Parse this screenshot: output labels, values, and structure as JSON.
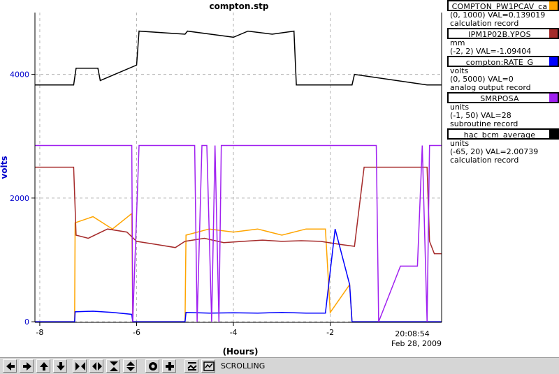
{
  "chart_data": {
    "type": "line",
    "title": "compton.stp",
    "xlabel": "(Hours)",
    "ylabel": "volts",
    "xlim": [
      -8.1,
      0.3
    ],
    "ylim": [
      -10,
      5000
    ],
    "x_ticks": [
      -8,
      -6,
      -4,
      -2
    ],
    "y_ticks": [
      0,
      2000,
      4000
    ],
    "grid": true,
    "legend_position": "right",
    "end_time": "20:08:54",
    "end_date": "Feb 28, 2009",
    "series": [
      {
        "name": "COMPTON_PW1PCAV_ca",
        "color": "#ffa500",
        "x": [
          -8.1,
          -7.28,
          -7.27,
          -6.9,
          -6.5,
          -6.1,
          -6.08,
          -5.0,
          -4.98,
          -4.5,
          -4.0,
          -3.5,
          -3.0,
          -2.5,
          -2.1,
          -2.0,
          -1.6,
          -1.55,
          0.0,
          0.15,
          0.3
        ],
        "y": [
          0,
          0,
          1600,
          1700,
          1500,
          1750,
          0,
          0,
          1400,
          1500,
          1450,
          1500,
          1400,
          1500,
          1500,
          150,
          600,
          0,
          0,
          0,
          0
        ]
      },
      {
        "name": "IPM1P02B.YPOS",
        "color": "#a52a2a",
        "x": [
          -8.1,
          -7.3,
          -7.25,
          -7.0,
          -6.6,
          -6.2,
          -6.0,
          -5.6,
          -5.2,
          -5.0,
          -4.6,
          -4.2,
          -3.8,
          -3.4,
          -3.0,
          -2.6,
          -2.2,
          -1.8,
          -1.5,
          -1.3,
          0.0,
          0.05,
          0.15,
          0.3
        ],
        "y": [
          2500,
          2500,
          1400,
          1350,
          1500,
          1450,
          1300,
          1250,
          1200,
          1300,
          1350,
          1280,
          1300,
          1320,
          1300,
          1310,
          1300,
          1250,
          1220,
          2500,
          2500,
          1300,
          1100,
          1100
        ]
      },
      {
        "name": "compton:RATE_G",
        "color": "#0000ff",
        "x": [
          -8.1,
          -7.28,
          -7.27,
          -6.9,
          -6.5,
          -6.1,
          -6.08,
          -5.0,
          -4.98,
          -4.5,
          -4.0,
          -3.5,
          -3.0,
          -2.5,
          -2.1,
          -1.9,
          -1.6,
          -1.55,
          0.3
        ],
        "y": [
          0,
          0,
          160,
          170,
          150,
          120,
          0,
          0,
          150,
          140,
          145,
          140,
          150,
          140,
          140,
          1500,
          600,
          0,
          0
        ]
      },
      {
        "name": "SMRPOSA",
        "color": "#a020f0",
        "x": [
          -8.1,
          -6.1,
          -6.08,
          -5.95,
          -4.8,
          -4.75,
          -4.65,
          -4.55,
          -4.45,
          -4.38,
          -4.3,
          -4.25,
          -1.05,
          -1.0,
          -0.55,
          -0.5,
          -0.2,
          -0.1,
          0.0,
          0.05,
          0.3
        ],
        "y": [
          2850,
          2850,
          0,
          2850,
          2850,
          0,
          2850,
          2850,
          0,
          2850,
          0,
          2850,
          2850,
          0,
          900,
          900,
          900,
          2850,
          0,
          2850,
          2850
        ]
      },
      {
        "name": "hac_bcm_average",
        "color": "#000000",
        "x": [
          -8.1,
          -7.3,
          -7.25,
          -6.8,
          -6.75,
          -6.45,
          -6.0,
          -5.95,
          -5.0,
          -4.95,
          -4.0,
          -3.7,
          -3.2,
          -2.75,
          -2.7,
          -2.0,
          -1.55,
          -1.5,
          0.0,
          0.02,
          0.3
        ],
        "y": [
          3830,
          3830,
          4100,
          4100,
          3900,
          4000,
          4150,
          4700,
          4650,
          4700,
          4600,
          4700,
          4650,
          4700,
          3830,
          3830,
          3830,
          4000,
          3830,
          3830,
          3830
        ]
      }
    ]
  },
  "legend": [
    {
      "name": "COMPTON_PW1PCAV_ca",
      "range": "(0, 1000) VAL=0.139019",
      "unit": "",
      "record": "calculation record",
      "color": "#ffa500"
    },
    {
      "name": "IPM1P02B.YPOS",
      "range": "(-2, 2) VAL=-1.09404",
      "unit": "mm",
      "record": "",
      "color": "#a52a2a"
    },
    {
      "name": "compton:RATE_G",
      "range": "(0, 5000) VAL=0",
      "unit": "volts",
      "record": "analog output record",
      "color": "#0000ff"
    },
    {
      "name": "SMRPOSA",
      "range": "(-1, 50) VAL=28",
      "unit": "units",
      "record": "subroutine record",
      "color": "#a020f0"
    },
    {
      "name": "hac_bcm_average",
      "range": "(-65, 20) VAL=2.00739",
      "unit": "units",
      "record": "calculation record",
      "color": "#000000"
    }
  ],
  "toolbar": {
    "status": "SCROLLING",
    "buttons": [
      "arrow-left-icon",
      "arrow-right-icon",
      "arrow-up-icon",
      "arrow-down-icon",
      "zoom-in-horizontal-icon",
      "zoom-out-horizontal-icon",
      "zoom-in-vertical-icon",
      "zoom-out-vertical-icon",
      "circle-icon",
      "plus-icon",
      "autoscale-icon",
      "scroll-icon"
    ]
  }
}
